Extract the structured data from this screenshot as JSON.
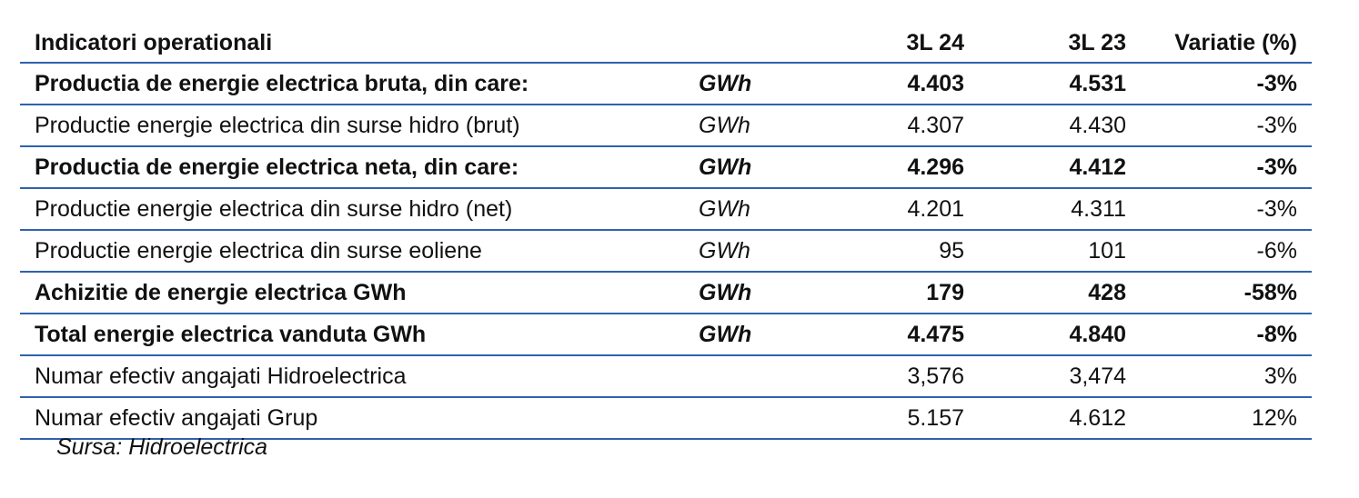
{
  "header": {
    "label": "Indicatori operationali",
    "unit": "",
    "col_a": "3L 24",
    "col_b": "3L 23",
    "col_c": "Variatie (%)"
  },
  "rows": [
    {
      "label": "Productia de energie electrica bruta, din care:",
      "unit": "GWh",
      "a": "4.403",
      "b": "4.531",
      "c": "-3%",
      "bold": true
    },
    {
      "label": "Productie energie electrica din surse hidro (brut)",
      "unit": "GWh",
      "a": "4.307",
      "b": "4.430",
      "c": "-3%",
      "bold": false
    },
    {
      "label": "Productia de energie electrica neta, din care:",
      "unit": "GWh",
      "a": "4.296",
      "b": "4.412",
      "c": "-3%",
      "bold": true
    },
    {
      "label": "Productie energie electrica din surse hidro (net)",
      "unit": "GWh",
      "a": "4.201",
      "b": "4.311",
      "c": "-3%",
      "bold": false
    },
    {
      "label": "Productie energie electrica din surse eoliene",
      "unit": "GWh",
      "a": "95",
      "b": "101",
      "c": "-6%",
      "bold": false
    },
    {
      "label": "Achizitie de energie electrica GWh",
      "unit": "GWh",
      "a": "179",
      "b": "428",
      "c": "-58%",
      "bold": true
    },
    {
      "label": "Total energie electrica vanduta GWh",
      "unit": "GWh",
      "a": "4.475",
      "b": "4.840",
      "c": "-8%",
      "bold": true
    },
    {
      "label": "Numar efectiv angajati Hidroelectrica",
      "unit": "",
      "a": "3,576",
      "b": "3,474",
      "c": "3%",
      "bold": false
    },
    {
      "label": "Numar efectiv angajati Grup",
      "unit": "",
      "a": "5.157",
      "b": "4.612",
      "c": "12%",
      "bold": false
    }
  ],
  "source": "Sursa: Hidroelectrica",
  "colors": {
    "rule": "#2f62ad",
    "text": "#111111"
  }
}
